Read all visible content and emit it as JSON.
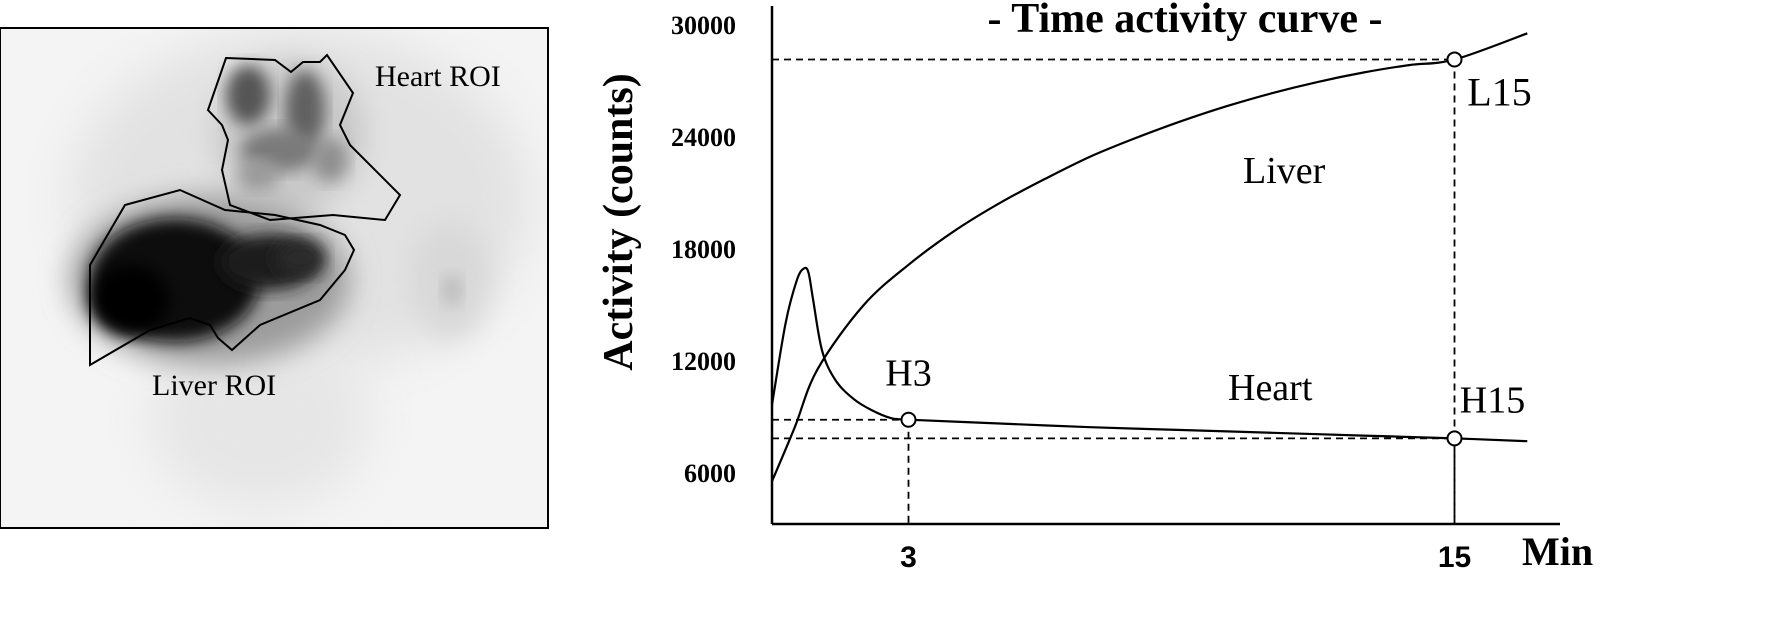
{
  "image_panel": {
    "heart_roi_label": "Heart ROI",
    "liver_roi_label": "Liver ROI"
  },
  "chart_data": {
    "type": "line",
    "title": "- Time activity curve -",
    "ylabel": "Activity (counts)",
    "xlabel": "Min",
    "yticks": [
      "6000",
      "12000",
      "18000",
      "24000",
      "30000"
    ],
    "xticks": [
      "3",
      "15"
    ],
    "ylim": [
      3000,
      30000
    ],
    "series": [
      {
        "name": "Liver",
        "x": [
          0,
          0.5,
          1,
          2,
          3,
          4,
          5,
          6,
          7,
          8,
          9,
          10,
          11,
          12,
          13,
          14,
          15,
          16.6
        ],
        "y": [
          5500,
          8400,
          11500,
          14900,
          17100,
          18900,
          20400,
          21700,
          22900,
          23900,
          24800,
          25600,
          26300,
          26900,
          27400,
          27800,
          28100,
          29500
        ]
      },
      {
        "name": "Heart",
        "x": [
          0,
          0.3,
          0.55,
          0.7,
          0.8,
          0.9,
          1.1,
          1.4,
          1.8,
          2.2,
          2.6,
          3,
          5,
          7,
          9,
          11,
          13,
          15,
          16.6
        ],
        "y": [
          9600,
          14000,
          16300,
          16900,
          16700,
          15300,
          12500,
          10900,
          9900,
          9300,
          8900,
          8800,
          8600,
          8400,
          8250,
          8100,
          7950,
          7800,
          7650
        ]
      }
    ],
    "markers": [
      {
        "label": "L15",
        "x": 15,
        "y": 28100
      },
      {
        "label": "H3",
        "x": 3,
        "y": 8800
      },
      {
        "label": "H15",
        "x": 15,
        "y": 7800
      }
    ],
    "curve_labels": {
      "liver": "Liver",
      "heart": "Heart"
    },
    "grid": false
  }
}
